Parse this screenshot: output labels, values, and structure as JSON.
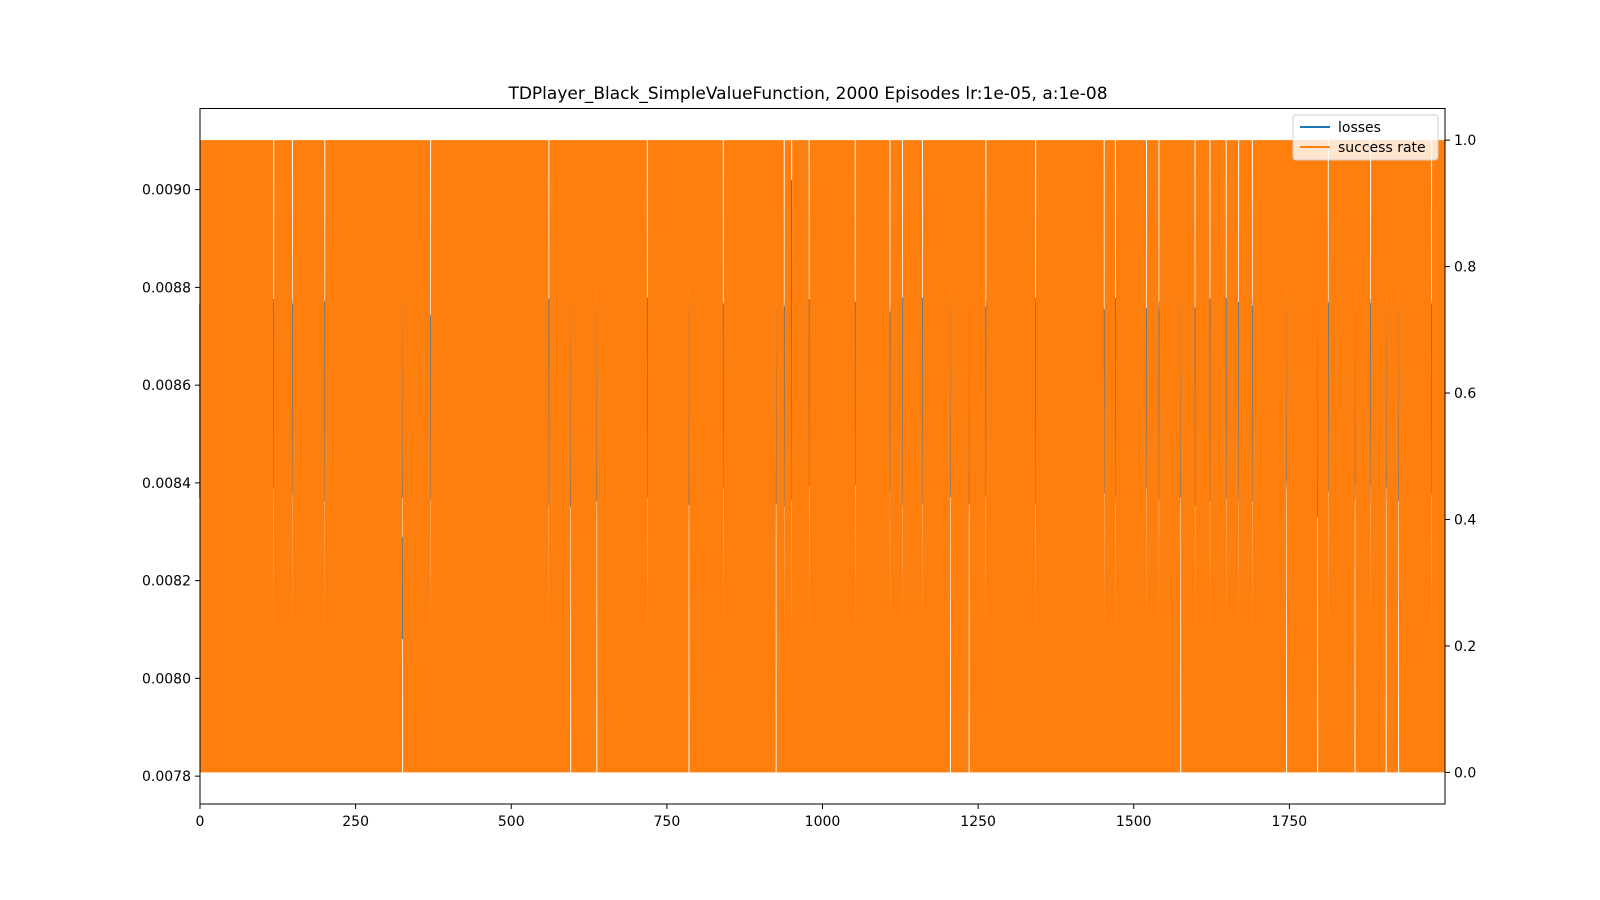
{
  "chart_data": {
    "type": "line",
    "title": "TDPlayer_Black_SimpleValueFunction, 2000 Episodes lr:1e-05, a:1e-08",
    "xlabel": "",
    "ylabel_left": "",
    "ylabel_right": "",
    "xlim": [
      0,
      2000
    ],
    "ylim_left": [
      0.007743,
      0.009166
    ],
    "ylim_right": [
      -0.05,
      1.05
    ],
    "x_ticks": [
      0,
      250,
      500,
      750,
      1000,
      1250,
      1500,
      1750
    ],
    "y_left_ticks": [
      "0.0078",
      "0.0080",
      "0.0082",
      "0.0084",
      "0.0086",
      "0.0088",
      "0.0090"
    ],
    "y_right_ticks": [
      "0.0",
      "0.2",
      "0.4",
      "0.6",
      "0.8",
      "1.0"
    ],
    "grid": false,
    "legend_position": "top-right",
    "series": [
      {
        "name": "losses",
        "axis": "left",
        "color": "#1f77b4",
        "range": [
          0.0078,
          0.0091
        ],
        "typical_high": 0.00876,
        "typical_low": 0.00838,
        "spikes": [
          {
            "x": 325,
            "low": 0.00808,
            "high": 0.00829
          },
          {
            "x": 950,
            "low": 0.00838,
            "high": 0.00902
          },
          {
            "x": 1110,
            "low": 0.00832,
            "high": 0.00876
          },
          {
            "x": 1575,
            "low": 0.00844,
            "high": 0.0088
          },
          {
            "x": 1795,
            "low": 0.00833,
            "high": 0.00876
          }
        ]
      },
      {
        "name": "success rate",
        "axis": "right",
        "color": "#ff7f0e",
        "values_range": [
          0,
          1
        ],
        "gap_episodes": [
          118,
          148,
          200,
          325,
          370,
          560,
          595,
          637,
          718,
          785,
          840,
          925,
          938,
          950,
          978,
          1052,
          1108,
          1128,
          1160,
          1205,
          1235,
          1262,
          1342,
          1452,
          1470,
          1520,
          1540,
          1575,
          1598,
          1622,
          1648,
          1668,
          1690,
          1745,
          1795,
          1812,
          1855,
          1880,
          1905,
          1925,
          1978
        ]
      }
    ]
  }
}
